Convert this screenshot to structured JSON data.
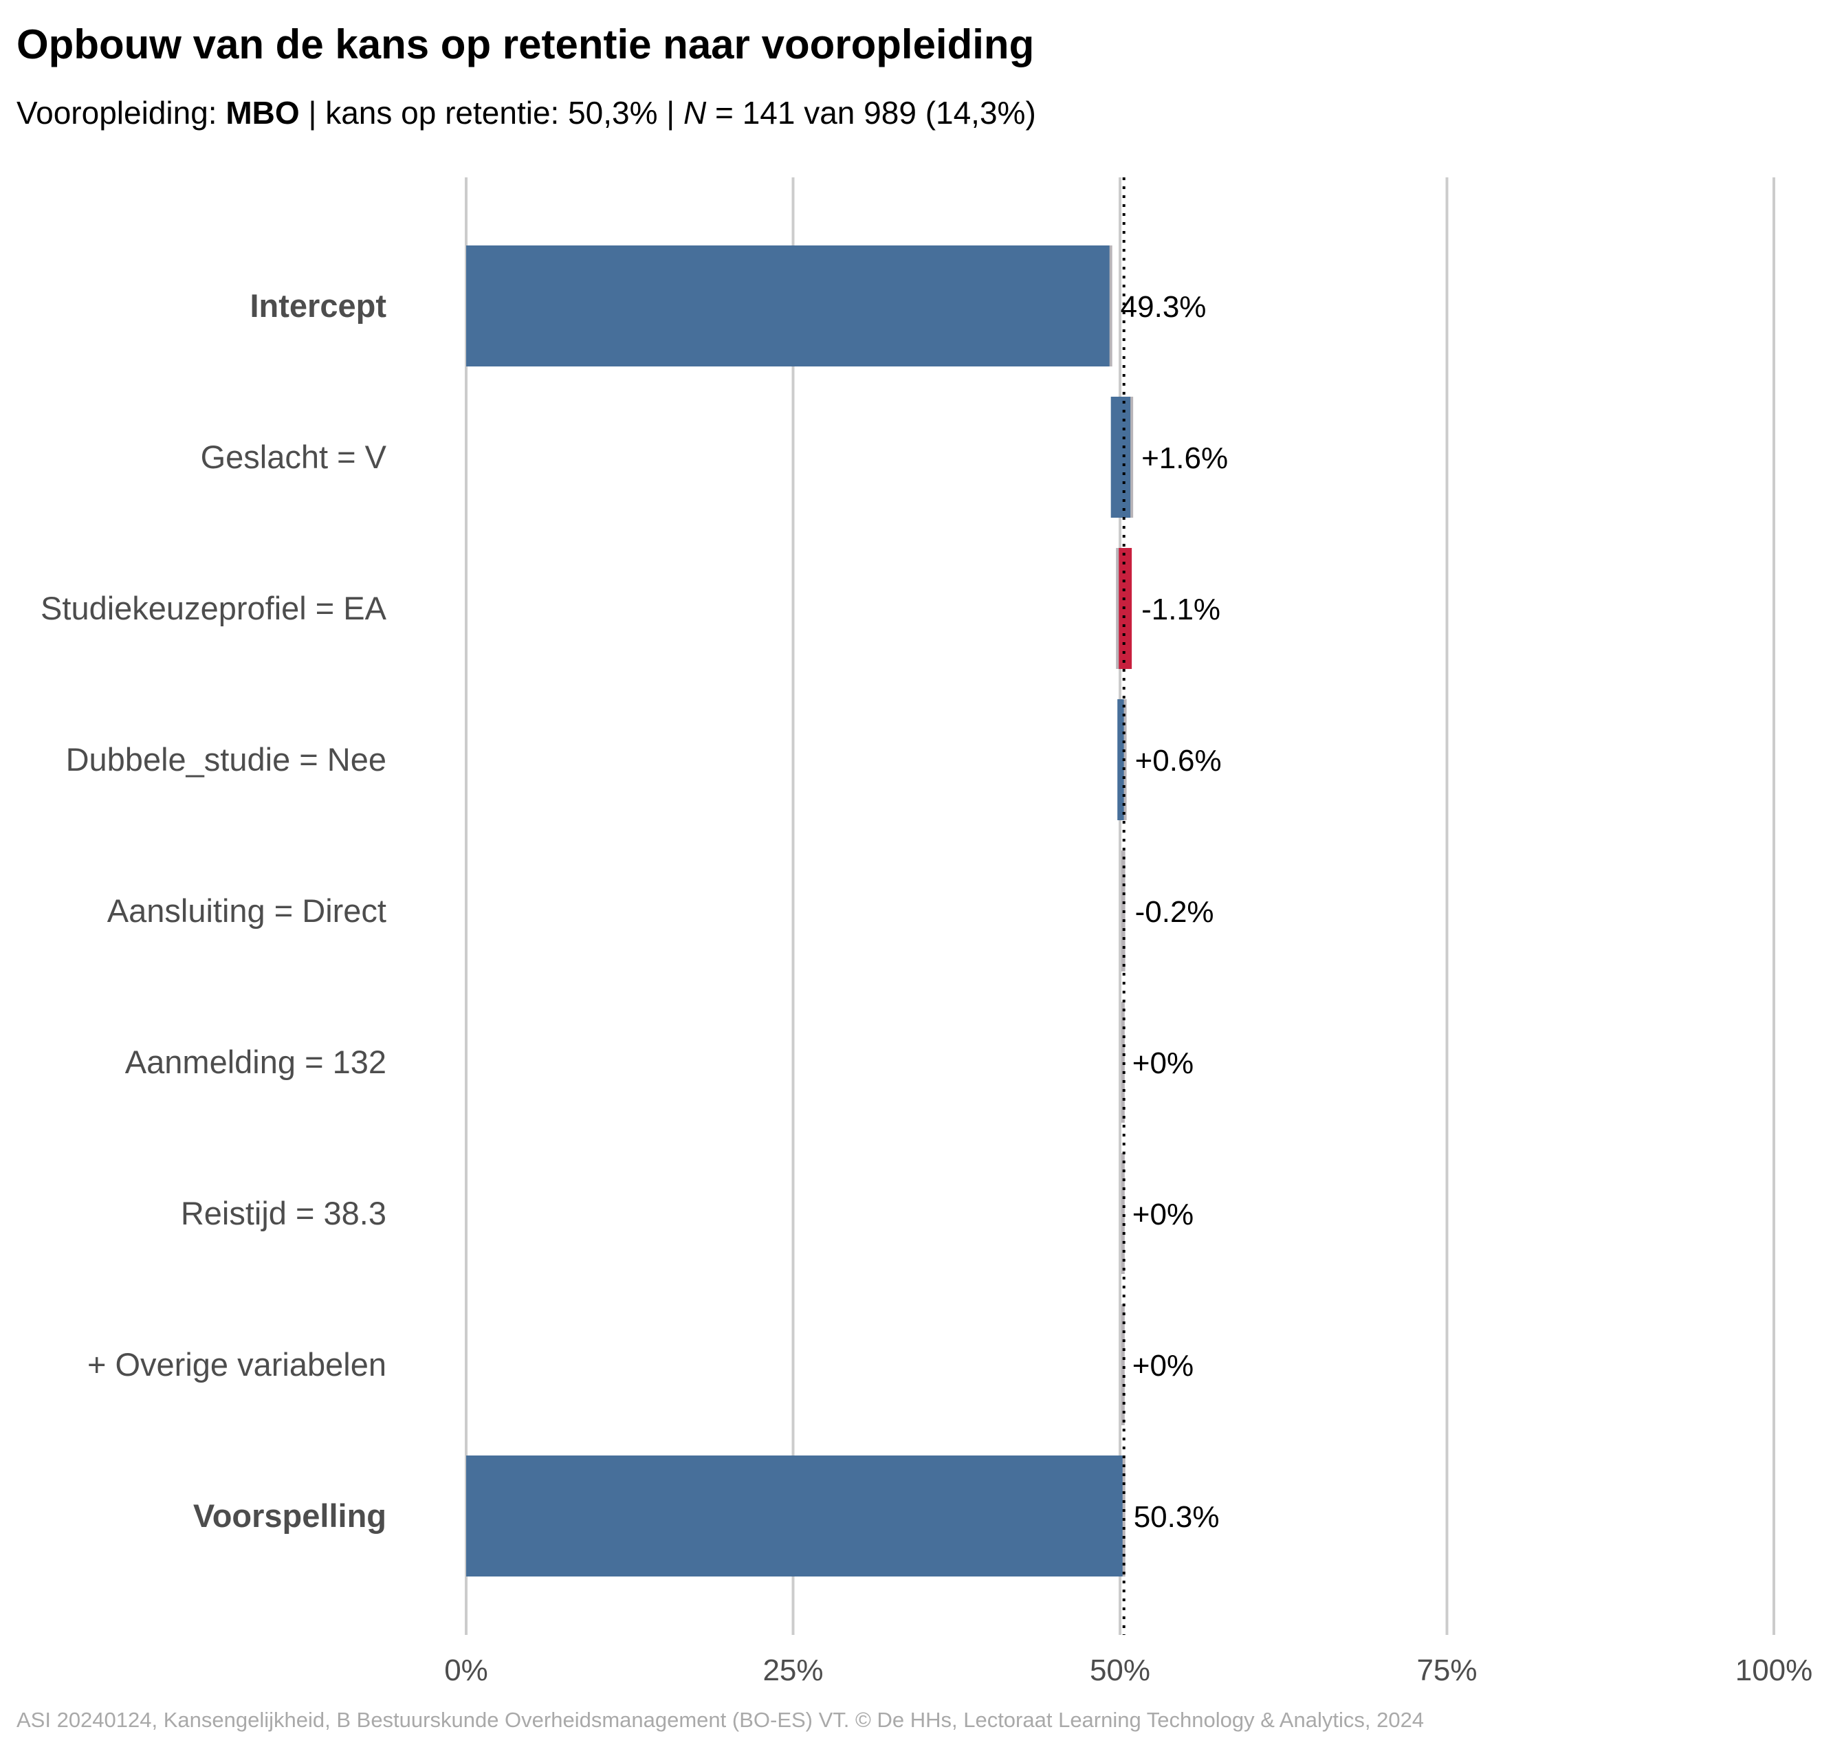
{
  "header": {
    "title": "Opbouw van de kans op retentie naar vooropleiding",
    "subtitle_prefix": "Vooropleiding: ",
    "subtitle_group": "MBO",
    "subtitle_mid": " | kans op retentie: 50,3% | ",
    "subtitle_n_label": "N",
    "subtitle_suffix": " = 141 van 989 (14,3%)"
  },
  "caption": "ASI 20240124, Kansengelijkheid, B Bestuurskunde Overheidsmanagement (BO-ES) VT. © De HHs, Lectoraat Learning Technology & Analytics, 2024",
  "colors": {
    "positive": "#476f9a",
    "negative": "#c8203e",
    "neutral": "#b8b4b8",
    "grid": "#cccccc",
    "label": "#4d4d4d",
    "value_text": "#000000",
    "reference_line": "#000000"
  },
  "chart_data": {
    "type": "bar",
    "orientation": "horizontal",
    "subtype": "waterfall",
    "xlim": [
      0,
      100
    ],
    "x_ticks": [
      0,
      25,
      50,
      75,
      100
    ],
    "x_tick_labels": [
      "0%",
      "25%",
      "50%",
      "75%",
      "100%"
    ],
    "reference_line": 50.3,
    "grid": true,
    "categories": [
      "Intercept",
      "Geslacht = V",
      "Studiekeuzeprofiel = EA",
      "Dubbele_studie = Nee",
      "Aansluiting = Direct",
      "Aanmelding = 132",
      "Reistijd = 38.3",
      "+ Overige variabelen",
      "Voorspelling"
    ],
    "bold_categories": [
      "Intercept",
      "Voorspelling"
    ],
    "values": [
      49.3,
      1.6,
      -1.1,
      0.6,
      -0.2,
      0,
      0,
      0,
      50.3
    ],
    "kinds": [
      "total",
      "delta",
      "delta",
      "delta",
      "delta",
      "delta",
      "delta",
      "delta",
      "total"
    ],
    "value_labels": [
      "49.3%",
      "+1.6%",
      "-1.1%",
      "+0.6%",
      "-0.2%",
      "+0%",
      "+0%",
      "+0%",
      "50.3%"
    ]
  }
}
